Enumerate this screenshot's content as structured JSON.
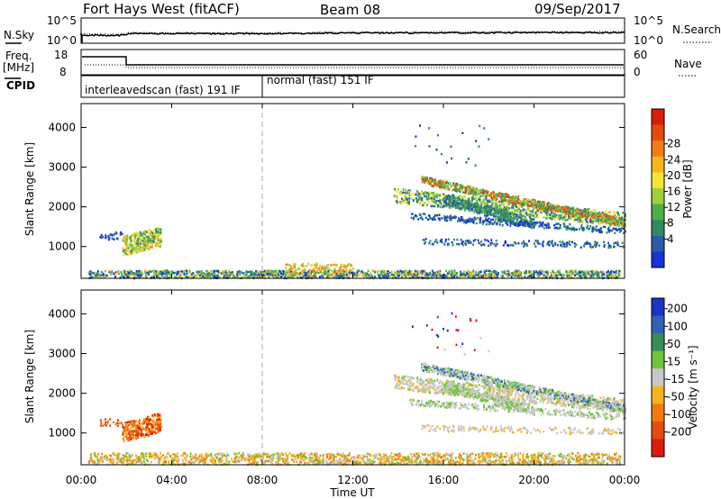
{
  "header": {
    "title": "Fort Hays West (fitACF)",
    "beam": "Beam 08",
    "date": "09/Sep/2017"
  },
  "noise_panel": {
    "left_label": "N.Sky",
    "right_label": "N.Search",
    "left_ticks": [
      "10^5",
      "10^0"
    ],
    "right_ticks": [
      "10^5",
      "10^0"
    ]
  },
  "freq_panel": {
    "left_label_line1": "Freq.",
    "left_label_line2": "[MHz]",
    "left_ticks": [
      "18",
      "8"
    ],
    "right_label": "Nave",
    "right_ticks": [
      "60",
      "0"
    ]
  },
  "cpid_panel": {
    "label": "CPID",
    "modes": [
      {
        "name": "interleavedscan (fast) 191 IF",
        "start_hour": 0,
        "end_hour": 8
      },
      {
        "name": "normal (fast) 151 IF",
        "start_hour": 8,
        "end_hour": 24
      }
    ]
  },
  "x_axis": {
    "label": "Time UT",
    "ticks": [
      "00:00",
      "04:00",
      "08:00",
      "12:00",
      "16:00",
      "20:00",
      "00:00"
    ],
    "range_hours": [
      0,
      24
    ]
  },
  "chart_data": [
    {
      "type": "heatmap",
      "name": "power",
      "ylabel": "Slant Range [km]",
      "ylim": [
        200,
        4600
      ],
      "yticks": [
        1000,
        2000,
        3000,
        4000
      ],
      "colorbar_label": "Power [dB]",
      "colorbar_ticks": [
        "4",
        "8",
        "12",
        "16",
        "20",
        "24",
        "28"
      ],
      "colorbar_colors": [
        "#1632d8",
        "#2a5ca8",
        "#2f8a66",
        "#4fae4c",
        "#9fcf3a",
        "#f2e533",
        "#f7b51f",
        "#f07d12",
        "#e44a0e",
        "#d91d0d"
      ]
    },
    {
      "type": "heatmap",
      "name": "velocity",
      "ylabel": "Slant Range [km]",
      "ylim": [
        200,
        4600
      ],
      "yticks": [
        1000,
        2000,
        3000,
        4000
      ],
      "colorbar_label": "Velocity [m s⁻¹]",
      "colorbar_ticks": [
        "200",
        "100",
        "50",
        "15",
        "-15",
        "-50",
        "-100",
        "-200"
      ],
      "colorbar_colors": [
        "#1d33c4",
        "#2f62b3",
        "#3a8b58",
        "#6ec43c",
        "#c8c8c8",
        "#f7b21e",
        "#f07a12",
        "#e64b10",
        "#dd1a10"
      ]
    }
  ]
}
